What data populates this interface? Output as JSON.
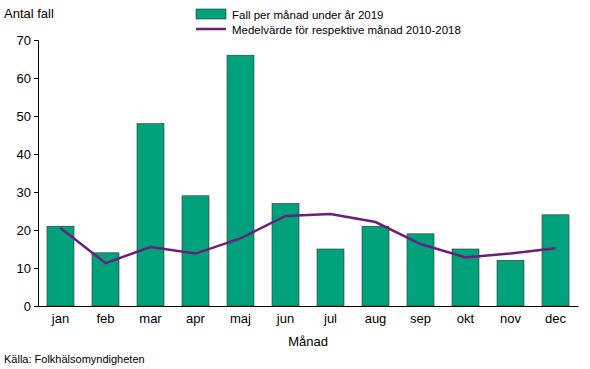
{
  "chart_data": {
    "type": "bar",
    "y_label": "Antal fall",
    "x_label": "Månad",
    "source": "Källa: Folkhälsomyndigheten",
    "categories": [
      "jan",
      "feb",
      "mar",
      "apr",
      "maj",
      "jun",
      "jul",
      "aug",
      "sep",
      "okt",
      "nov",
      "dec"
    ],
    "series": [
      {
        "name": "Fall per månad under år 2019",
        "type": "bar",
        "color": "#00a27c",
        "values": [
          21,
          14,
          48,
          29,
          66,
          27,
          15,
          21,
          19,
          15,
          12,
          24
        ]
      },
      {
        "name": "Medelvärde för respektive månad 2010-2018",
        "type": "line",
        "color": "#6b1f7c",
        "values": [
          20.5,
          11.3,
          15.5,
          13.8,
          17.8,
          23.7,
          24.2,
          22.1,
          16.3,
          12.8,
          13.8,
          15.2
        ]
      }
    ],
    "ylim": [
      0,
      70
    ],
    "yticks": [
      0,
      10,
      20,
      30,
      40,
      50,
      60,
      70
    ],
    "grid": false,
    "legend": "top"
  }
}
